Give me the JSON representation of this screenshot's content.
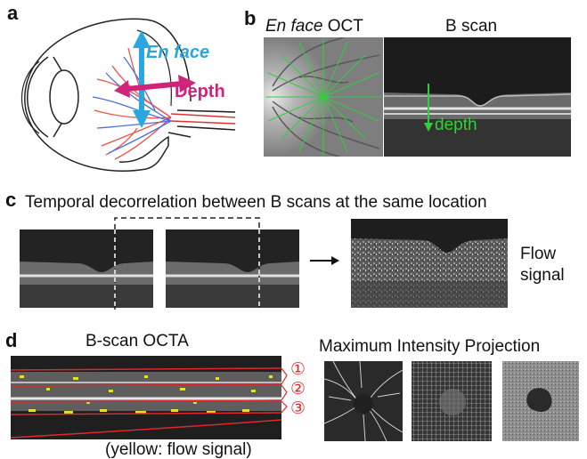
{
  "panel_a": {
    "letter": "a",
    "en_face_label": "En face",
    "depth_label": "Depth",
    "colors": {
      "en_face_arrow": "#2aa6e0",
      "depth_arrow": "#d0247a",
      "vessel_red": "#e8554e",
      "vessel_blue": "#4a6fe3"
    }
  },
  "panel_b": {
    "letter": "b",
    "en_face_title_italic": "En face",
    "en_face_title_rest": " OCT",
    "bscan_title": "B scan",
    "depth_label": "depth",
    "colors": {
      "guide_lines": "#2fd13a"
    }
  },
  "panel_c": {
    "letter": "c",
    "title": "Temporal decorrelation between B scans at the same location",
    "flow_label_line1": "Flow",
    "flow_label_line2": "signal"
  },
  "panel_d": {
    "letter": "d",
    "bscan_title": "B-scan OCTA",
    "mip_title": "Maximum Intensity Projection",
    "layers": [
      "①",
      "②",
      "③"
    ],
    "caption_partial": "(yellow: flow signal)",
    "colors": {
      "segmentation": "#e0282a",
      "flow": "#e8e02a"
    }
  }
}
